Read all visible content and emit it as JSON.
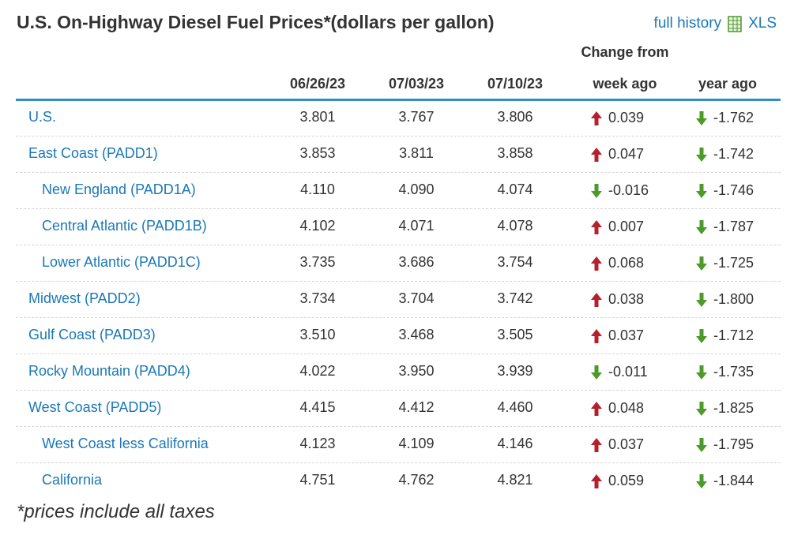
{
  "header": {
    "title": "U.S. On-Highway Diesel Fuel Prices*(dollars per gallon)",
    "history_link": "full history",
    "xls_label": "XLS",
    "xls_icon": "spreadsheet-icon"
  },
  "columns": {
    "change_from": "Change from",
    "d1": "06/26/23",
    "d2": "07/03/23",
    "d3": "07/10/23",
    "week": "week ago",
    "year": "year ago"
  },
  "colors": {
    "up": "#b5202e",
    "down": "#4c9a2a",
    "link": "#1a78b8",
    "rule": "#2e8fc6"
  },
  "rows": [
    {
      "name": "U.S.",
      "sub": false,
      "d1": "3.801",
      "d2": "3.767",
      "d3": "3.806",
      "week": "0.039",
      "week_dir": "up",
      "year": "-1.762",
      "year_dir": "down"
    },
    {
      "name": "East Coast (PADD1)",
      "sub": false,
      "d1": "3.853",
      "d2": "3.811",
      "d3": "3.858",
      "week": "0.047",
      "week_dir": "up",
      "year": "-1.742",
      "year_dir": "down"
    },
    {
      "name": "New England (PADD1A)",
      "sub": true,
      "d1": "4.110",
      "d2": "4.090",
      "d3": "4.074",
      "week": "-0.016",
      "week_dir": "down",
      "year": "-1.746",
      "year_dir": "down"
    },
    {
      "name": "Central Atlantic (PADD1B)",
      "sub": true,
      "d1": "4.102",
      "d2": "4.071",
      "d3": "4.078",
      "week": "0.007",
      "week_dir": "up",
      "year": "-1.787",
      "year_dir": "down"
    },
    {
      "name": "Lower Atlantic (PADD1C)",
      "sub": true,
      "d1": "3.735",
      "d2": "3.686",
      "d3": "3.754",
      "week": "0.068",
      "week_dir": "up",
      "year": "-1.725",
      "year_dir": "down"
    },
    {
      "name": "Midwest (PADD2)",
      "sub": false,
      "d1": "3.734",
      "d2": "3.704",
      "d3": "3.742",
      "week": "0.038",
      "week_dir": "up",
      "year": "-1.800",
      "year_dir": "down"
    },
    {
      "name": "Gulf Coast (PADD3)",
      "sub": false,
      "d1": "3.510",
      "d2": "3.468",
      "d3": "3.505",
      "week": "0.037",
      "week_dir": "up",
      "year": "-1.712",
      "year_dir": "down"
    },
    {
      "name": "Rocky Mountain (PADD4)",
      "sub": false,
      "d1": "4.022",
      "d2": "3.950",
      "d3": "3.939",
      "week": "-0.011",
      "week_dir": "down",
      "year": "-1.735",
      "year_dir": "down"
    },
    {
      "name": "West Coast (PADD5)",
      "sub": false,
      "d1": "4.415",
      "d2": "4.412",
      "d3": "4.460",
      "week": "0.048",
      "week_dir": "up",
      "year": "-1.825",
      "year_dir": "down"
    },
    {
      "name": "West Coast less California",
      "sub": true,
      "d1": "4.123",
      "d2": "4.109",
      "d3": "4.146",
      "week": "0.037",
      "week_dir": "up",
      "year": "-1.795",
      "year_dir": "down"
    },
    {
      "name": "California",
      "sub": true,
      "d1": "4.751",
      "d2": "4.762",
      "d3": "4.821",
      "week": "0.059",
      "week_dir": "up",
      "year": "-1.844",
      "year_dir": "down"
    }
  ],
  "footnote": "*prices include all taxes"
}
